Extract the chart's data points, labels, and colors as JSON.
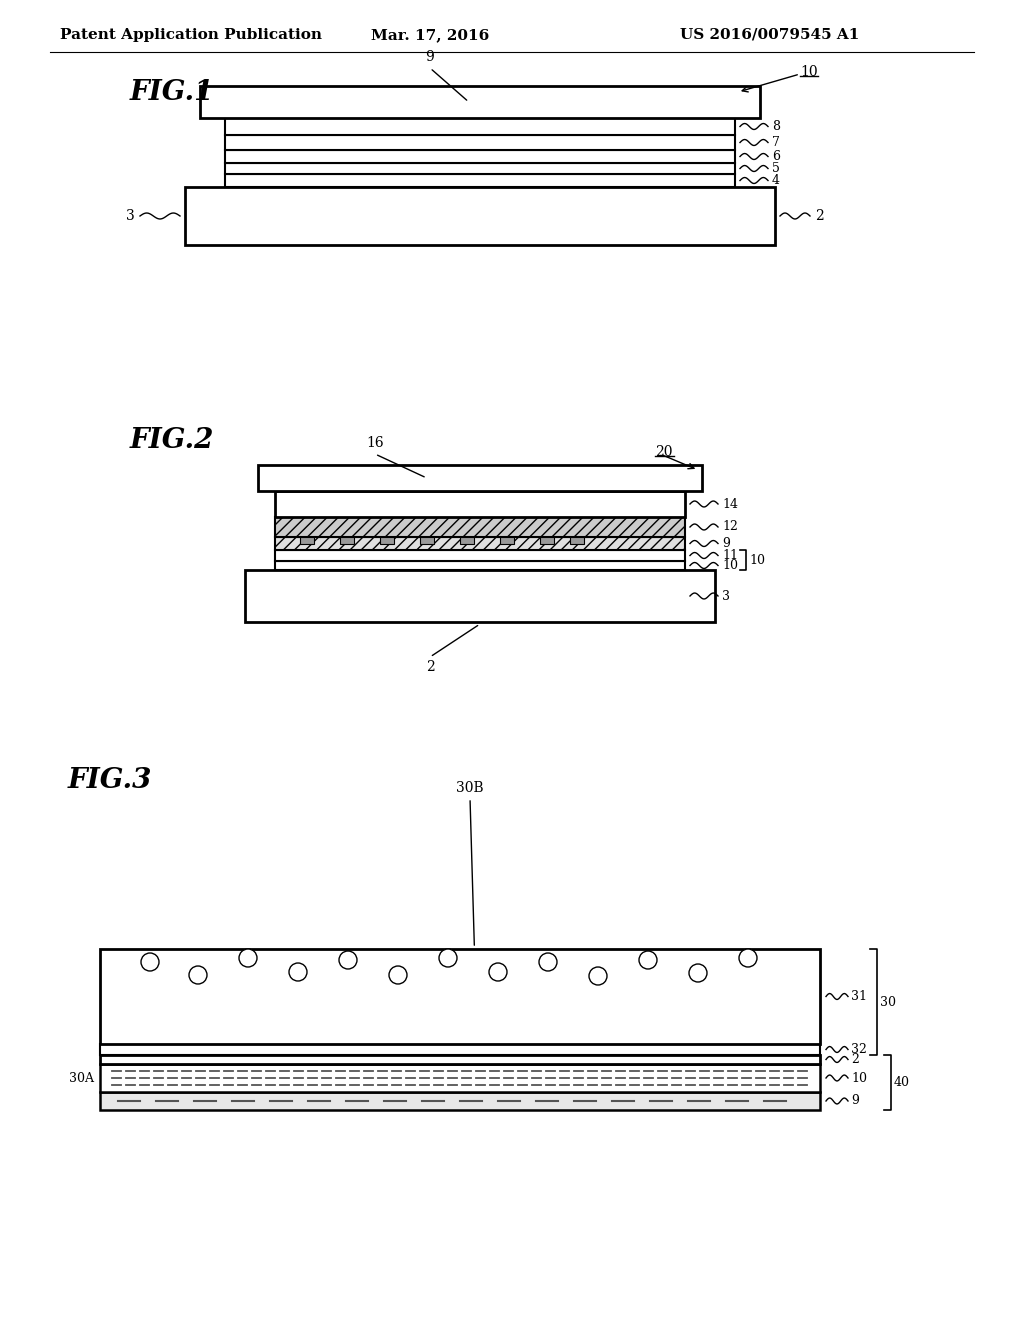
{
  "bg_color": "#ffffff",
  "header_left": "Patent Application Publication",
  "header_mid": "Mar. 17, 2016",
  "header_right": "US 2016/0079545 A1",
  "fig1_label": "FIG.1",
  "fig2_label": "FIG.2",
  "fig3_label": "FIG.3"
}
